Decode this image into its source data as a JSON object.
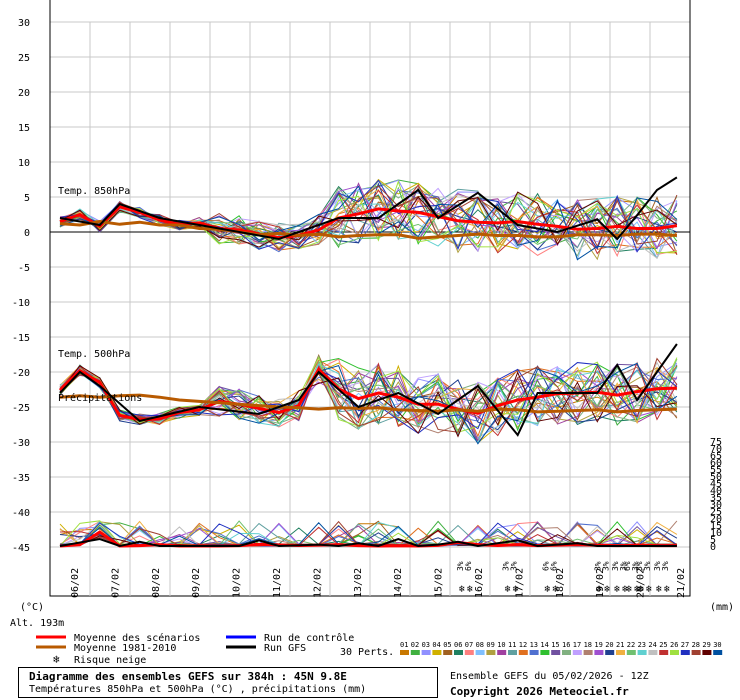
{
  "chart_data": {
    "type": "line",
    "left_axis": {
      "unit_label": "(°C)",
      "min": -45,
      "max": 30,
      "ticks": [
        30,
        25,
        20,
        15,
        10,
        5,
        0,
        -5,
        -10,
        -15,
        -20,
        -25,
        -30,
        -35,
        -40,
        -45
      ]
    },
    "right_axis": {
      "unit_label": "(mm)",
      "min": 0,
      "max": 75,
      "ticks": [
        75,
        70,
        65,
        60,
        55,
        50,
        45,
        40,
        35,
        30,
        25,
        20,
        15,
        10,
        5,
        0
      ]
    },
    "altitude_label": "Alt. 193m",
    "x_tick_labels": [
      "06/02",
      "07/02",
      "08/02",
      "09/02",
      "10/02",
      "11/02",
      "12/02",
      "13/02",
      "14/02",
      "15/02",
      "16/02",
      "17/02",
      "18/02",
      "19/02",
      "20/02",
      "21/02"
    ],
    "panel_labels": {
      "t850": "Temp. 850hPa",
      "t500": "Temp. 500hPa",
      "precip": "Précipitations"
    },
    "series": [
      {
        "name": "Moyenne des scénarios",
        "color": "#ff0000",
        "t850": [
          [
            0,
            1.5
          ],
          [
            1,
            2.5
          ],
          [
            2,
            0.8
          ],
          [
            3,
            3.6
          ],
          [
            4,
            2.8
          ],
          [
            5,
            1.7
          ],
          [
            6,
            1.1
          ],
          [
            7,
            1.3
          ],
          [
            8,
            0.5
          ],
          [
            9,
            0.3
          ],
          [
            10,
            -0.3
          ],
          [
            11,
            -0.8
          ],
          [
            12,
            -0.5
          ],
          [
            13,
            0.3
          ],
          [
            14,
            2
          ],
          [
            15,
            2.6
          ],
          [
            16,
            3.3
          ],
          [
            17,
            3
          ],
          [
            18,
            2.8
          ],
          [
            19,
            2.2
          ],
          [
            20,
            1.6
          ],
          [
            21,
            1.4
          ],
          [
            22,
            1.3
          ],
          [
            23,
            1.5
          ],
          [
            24,
            1.1
          ],
          [
            25,
            0.8
          ],
          [
            26,
            0.4
          ],
          [
            27,
            0.5
          ],
          [
            28,
            0.8
          ],
          [
            29,
            0.5
          ],
          [
            30,
            0.5
          ],
          [
            31,
            0.9
          ]
        ],
        "t500": [
          [
            0,
            -22.6
          ],
          [
            1,
            -19.8
          ],
          [
            2,
            -21.5
          ],
          [
            3,
            -26.2
          ],
          [
            4,
            -26.8
          ],
          [
            5,
            -26.7
          ],
          [
            6,
            -25.8
          ],
          [
            7,
            -25.4
          ],
          [
            8,
            -24.2
          ],
          [
            9,
            -24.6
          ],
          [
            10,
            -25.2
          ],
          [
            11,
            -25.8
          ],
          [
            12,
            -24.8
          ],
          [
            13,
            -19.6
          ],
          [
            14,
            -22.4
          ],
          [
            15,
            -23.8
          ],
          [
            16,
            -23
          ],
          [
            17,
            -23.6
          ],
          [
            18,
            -24.6
          ],
          [
            19,
            -24.6
          ],
          [
            20,
            -25.3
          ],
          [
            21,
            -25.9
          ],
          [
            22,
            -24.8
          ],
          [
            23,
            -24
          ],
          [
            24,
            -23.6
          ],
          [
            25,
            -23.1
          ],
          [
            26,
            -23
          ],
          [
            27,
            -22.9
          ],
          [
            28,
            -23.3
          ],
          [
            29,
            -22.8
          ],
          [
            30,
            -22.4
          ],
          [
            31,
            -22.3
          ]
        ],
        "precip": [
          [
            0,
            0
          ],
          [
            1,
            1
          ],
          [
            2,
            10
          ],
          [
            3,
            0
          ],
          [
            4,
            0.3
          ],
          [
            5,
            1
          ],
          [
            6,
            0
          ],
          [
            7,
            0
          ],
          [
            8,
            0
          ],
          [
            9,
            0.3
          ],
          [
            10,
            1.2
          ],
          [
            11,
            0.8
          ],
          [
            12,
            0.4
          ],
          [
            13,
            0.6
          ],
          [
            14,
            1
          ],
          [
            15,
            0.3
          ],
          [
            16,
            0
          ],
          [
            17,
            0.2
          ],
          [
            18,
            0
          ],
          [
            19,
            0.4
          ],
          [
            20,
            2.5
          ],
          [
            21,
            1
          ],
          [
            22,
            0.4
          ],
          [
            23,
            1
          ],
          [
            24,
            0.3
          ],
          [
            25,
            0.6
          ],
          [
            26,
            1
          ],
          [
            27,
            0.5
          ],
          [
            28,
            0.3
          ],
          [
            29,
            0.5
          ],
          [
            30,
            0.3
          ],
          [
            31,
            0.3
          ]
        ]
      },
      {
        "name": "Moyenne 1981-2010",
        "color": "#b85a00",
        "t850": [
          [
            0,
            1.2
          ],
          [
            1,
            1
          ],
          [
            2,
            1.5
          ],
          [
            3,
            1.1
          ],
          [
            4,
            1.4
          ],
          [
            5,
            1
          ],
          [
            6,
            1
          ],
          [
            7,
            0.5
          ],
          [
            8,
            0.4
          ],
          [
            9,
            0
          ],
          [
            10,
            -0.4
          ],
          [
            11,
            -0.2
          ],
          [
            12,
            -0.5
          ],
          [
            13,
            -0.3
          ],
          [
            14,
            -0.7
          ],
          [
            15,
            -0.5
          ],
          [
            16,
            -0.4
          ],
          [
            17,
            -0.4
          ],
          [
            18,
            -0.9
          ],
          [
            19,
            -0.7
          ],
          [
            20,
            -0.5
          ],
          [
            21,
            -0.3
          ],
          [
            22,
            -0.5
          ],
          [
            23,
            -0.5
          ],
          [
            24,
            -0.7
          ],
          [
            25,
            -0.7
          ],
          [
            26,
            -0.4
          ],
          [
            27,
            -0.4
          ],
          [
            28,
            -0.5
          ],
          [
            29,
            -0.3
          ],
          [
            30,
            -0.3
          ],
          [
            31,
            -0.5
          ]
        ],
        "t500": [
          [
            0,
            -23.6
          ],
          [
            1,
            -23.4
          ],
          [
            2,
            -23.6
          ],
          [
            3,
            -23.4
          ],
          [
            4,
            -23.3
          ],
          [
            5,
            -23.6
          ],
          [
            6,
            -24
          ],
          [
            7,
            -24.2
          ],
          [
            8,
            -24.4
          ],
          [
            9,
            -24.6
          ],
          [
            10,
            -24.8
          ],
          [
            11,
            -25
          ],
          [
            12,
            -25.1
          ],
          [
            13,
            -25.3
          ],
          [
            14,
            -25.1
          ],
          [
            15,
            -25.2
          ],
          [
            16,
            -25.1
          ],
          [
            17,
            -25.4
          ],
          [
            18,
            -25.5
          ],
          [
            19,
            -25.6
          ],
          [
            20,
            -25.4
          ],
          [
            21,
            -25.6
          ],
          [
            22,
            -25.3
          ],
          [
            23,
            -25.4
          ],
          [
            24,
            -25.7
          ],
          [
            25,
            -25.6
          ],
          [
            26,
            -25.5
          ],
          [
            27,
            -25.4
          ],
          [
            28,
            -25.7
          ],
          [
            29,
            -25.5
          ],
          [
            30,
            -25.4
          ],
          [
            31,
            -25.3
          ]
        ]
      },
      {
        "name": "Run de contrôle",
        "color": "#0000ff"
      },
      {
        "name": "Run GFS",
        "color": "#000000",
        "t850": [
          [
            0,
            2
          ],
          [
            2,
            1
          ],
          [
            3,
            4
          ],
          [
            5,
            2
          ],
          [
            8,
            0.5
          ],
          [
            11,
            -1
          ],
          [
            14,
            2
          ],
          [
            16,
            2
          ],
          [
            17,
            4
          ],
          [
            18,
            6
          ],
          [
            19,
            2
          ],
          [
            21,
            5.6
          ],
          [
            23,
            1
          ],
          [
            25,
            0
          ],
          [
            27,
            1.8
          ],
          [
            28,
            -1
          ],
          [
            29,
            2.4
          ],
          [
            30,
            6
          ],
          [
            31,
            7.8
          ]
        ],
        "t500": [
          [
            0,
            -23
          ],
          [
            1,
            -20
          ],
          [
            2,
            -22
          ],
          [
            4,
            -27
          ],
          [
            7,
            -25
          ],
          [
            10,
            -26
          ],
          [
            12,
            -24
          ],
          [
            13,
            -20
          ],
          [
            15,
            -25
          ],
          [
            17,
            -23
          ],
          [
            19,
            -26
          ],
          [
            21,
            -22
          ],
          [
            23,
            -29
          ],
          [
            24,
            -23
          ],
          [
            27,
            -23
          ],
          [
            28,
            -19
          ],
          [
            29,
            -24
          ],
          [
            30,
            -20
          ],
          [
            31,
            -16
          ]
        ],
        "precip": [
          [
            0,
            0
          ],
          [
            2,
            5
          ],
          [
            3,
            0
          ],
          [
            4,
            3
          ],
          [
            5,
            0
          ],
          [
            9,
            0
          ],
          [
            10,
            4
          ],
          [
            11,
            0
          ],
          [
            13,
            1
          ],
          [
            14,
            0
          ],
          [
            15,
            2
          ],
          [
            16,
            0
          ],
          [
            17,
            5
          ],
          [
            18,
            0
          ],
          [
            19,
            1
          ],
          [
            20,
            3
          ],
          [
            21,
            0
          ],
          [
            23,
            4
          ],
          [
            24,
            0
          ],
          [
            26,
            2
          ],
          [
            27,
            0
          ],
          [
            31,
            0
          ]
        ]
      }
    ],
    "legend": {
      "mean": "Moyenne des scénarios",
      "clim": "Moyenne 1981-2010",
      "snow": "Risque neige",
      "control": "Run de contrôle",
      "gfs": "Run GFS",
      "perts": "30 Perts.",
      "pert_numbers": [
        "01",
        "02",
        "03",
        "04",
        "05",
        "06",
        "07",
        "08",
        "09",
        "10",
        "11",
        "12",
        "13",
        "14",
        "15",
        "16",
        "17",
        "18",
        "19",
        "20",
        "21",
        "22",
        "23",
        "24",
        "25",
        "26",
        "27",
        "28",
        "29",
        "30"
      ],
      "pert_colors": [
        "#c87800",
        "#40b040",
        "#9090ff",
        "#d0b000",
        "#a06020",
        "#208060",
        "#ff8080",
        "#80c0ff",
        "#b0a040",
        "#a040a0",
        "#60a0a0",
        "#e07020",
        "#5070d0",
        "#30c030",
        "#7050a0",
        "#80b080",
        "#c0a0ff",
        "#b08070",
        "#a050d0",
        "#204090",
        "#f0b040",
        "#70c070",
        "#60d0d0",
        "#c0c0c0",
        "#c03030",
        "#a0e040",
        "#2030c0",
        "#a04030",
        "#600000",
        "#0050a0"
      ]
    },
    "snow_markers": [
      {
        "x": 20.4,
        "labels": [
          "3%",
          "6%"
        ]
      },
      {
        "x": 22.7,
        "labels": [
          "3%",
          "3%"
        ]
      },
      {
        "x": 24.7,
        "labels": [
          "6%",
          "6%"
        ]
      },
      {
        "x": 27.3,
        "labels": [
          "3%",
          "3%"
        ]
      },
      {
        "x": 28.2,
        "labels": [
          "3%",
          "3%"
        ]
      },
      {
        "x": 28.8,
        "labels": [
          "6%",
          "3%"
        ]
      },
      {
        "x": 29.4,
        "labels": [
          "3%",
          "3%"
        ]
      },
      {
        "x": 30.3,
        "labels": [
          "3%",
          "3%"
        ]
      }
    ]
  },
  "footer": {
    "title": "Diagramme des ensembles GEFS sur 384h : 45N 9.8E",
    "subtitle": "Températures 850hPa et 500hPa (°C) , précipitations (mm)",
    "run": "Ensemble GEFS du 05/02/2026 - 12Z",
    "copyright": "Copyright 2026 Meteociel.fr"
  }
}
